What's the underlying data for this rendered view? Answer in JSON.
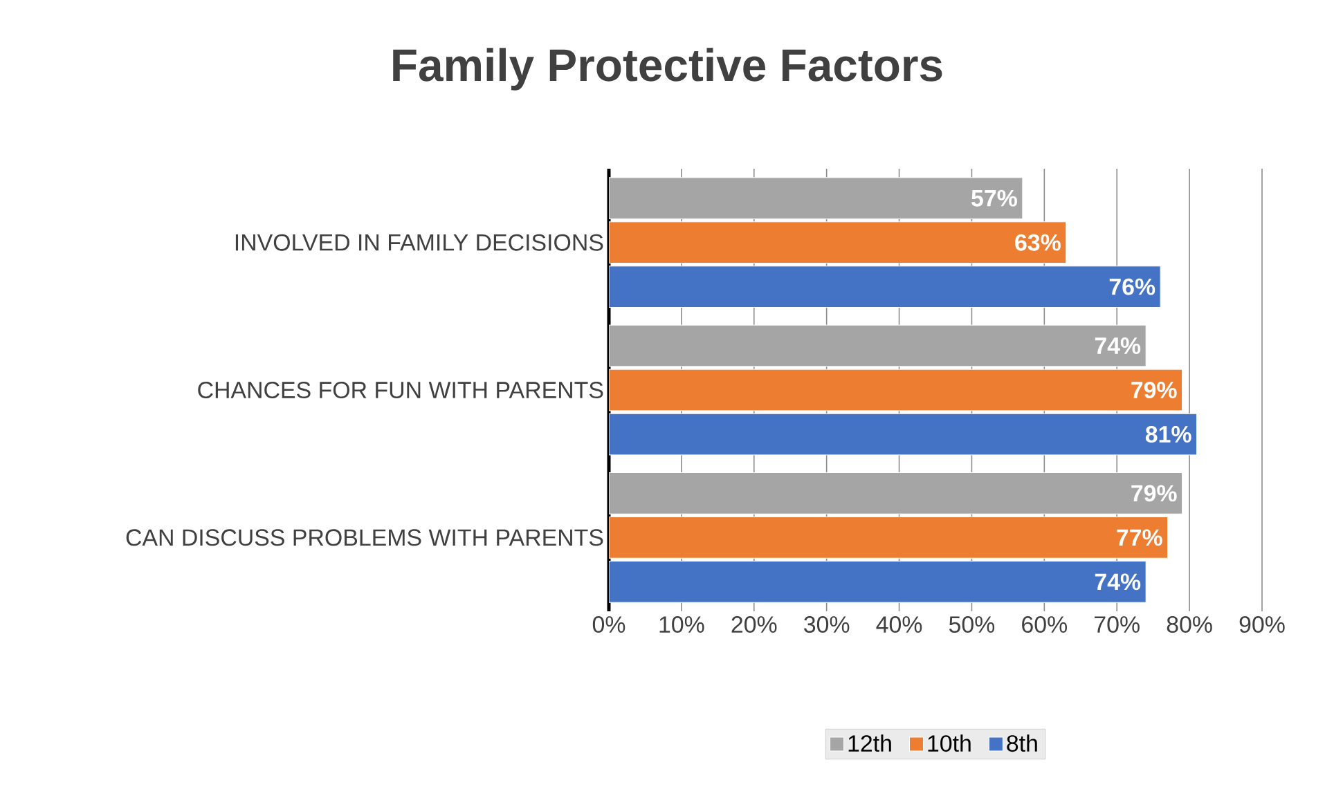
{
  "chart_data": {
    "type": "bar",
    "orientation": "horizontal",
    "title": "Family Protective Factors",
    "categories": [
      "INVOLVED IN FAMILY DECISIONS",
      "CHANCES FOR FUN WITH PARENTS",
      "CAN DISCUSS PROBLEMS WITH PARENTS"
    ],
    "series": [
      {
        "name": "12th",
        "color": "#a5a5a5",
        "values": [
          57,
          74,
          79
        ],
        "value_labels": [
          "57%",
          "74%",
          "79%"
        ]
      },
      {
        "name": "10th",
        "color": "#ed7d31",
        "values": [
          63,
          79,
          77
        ],
        "value_labels": [
          "63%",
          "79%",
          "77%"
        ]
      },
      {
        "name": "8th",
        "color": "#4472c4",
        "values": [
          76,
          81,
          74
        ],
        "value_labels": [
          "76%",
          "81%",
          "74%"
        ]
      }
    ],
    "xlim": [
      0,
      90
    ],
    "xticks": [
      {
        "value": 0,
        "label": "0%"
      },
      {
        "value": 10,
        "label": "10%"
      },
      {
        "value": 20,
        "label": "20%"
      },
      {
        "value": 30,
        "label": "30%"
      },
      {
        "value": 40,
        "label": "40%"
      },
      {
        "value": 50,
        "label": "50%"
      },
      {
        "value": 60,
        "label": "60%"
      },
      {
        "value": 70,
        "label": "70%"
      },
      {
        "value": 80,
        "label": "80%"
      },
      {
        "value": 90,
        "label": "90%"
      }
    ],
    "grid": "x",
    "legend": "bottom"
  }
}
